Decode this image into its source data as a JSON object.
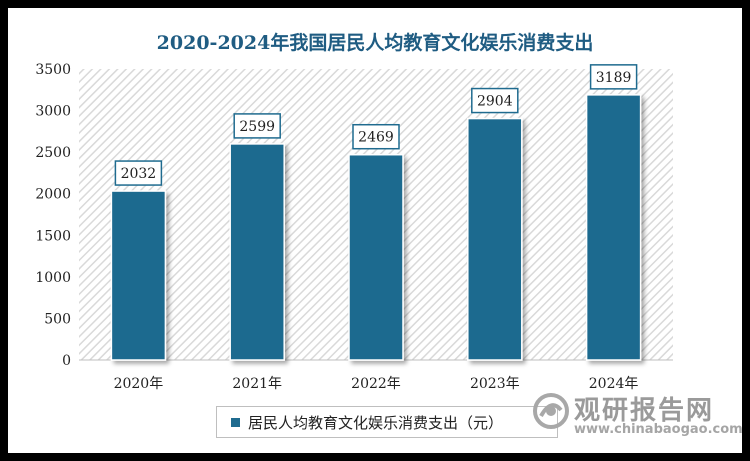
{
  "chart_data": {
    "type": "bar",
    "title": "2020-2024年我国居民人均教育文化娱乐消费支出",
    "categories": [
      "2020年",
      "2021年",
      "2022年",
      "2023年",
      "2024年"
    ],
    "series": [
      {
        "name": "居民人均教育文化娱乐消费支出（元）",
        "values": [
          2032,
          2599,
          2469,
          2904,
          3189
        ]
      }
    ],
    "ylim": [
      0,
      3500
    ],
    "yticks": [
      0,
      500,
      1000,
      1500,
      2000,
      2500,
      3000,
      3500
    ],
    "data_labels": [
      "2032",
      "2599",
      "2469",
      "2904",
      "3189"
    ],
    "legend_position": "bottom",
    "background_pattern": "diagonal-hatch",
    "bar_color": "#1f6b8f",
    "label_border_color": "#1f6b8f"
  },
  "watermark": {
    "name": "观研报告网",
    "url": "www.chinabaogao.com",
    "icon": "chinabaogao-logo-icon"
  }
}
